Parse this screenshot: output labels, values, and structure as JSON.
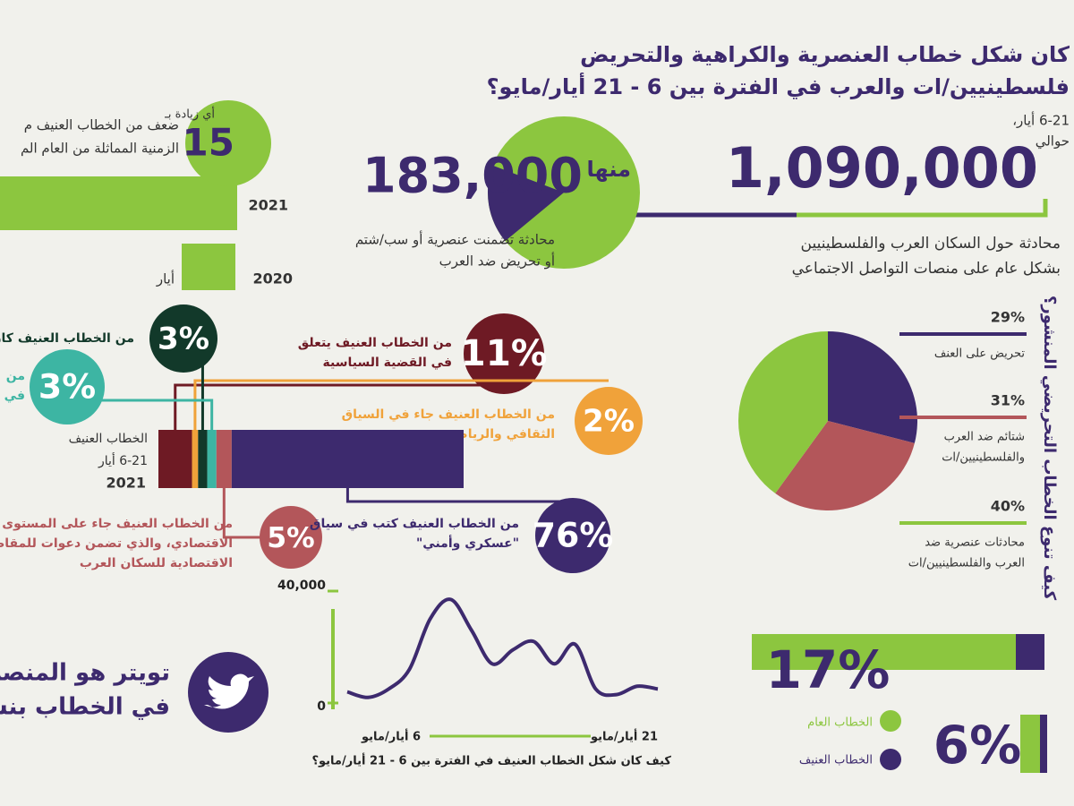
{
  "title": {
    "line1": "كان شكل خطاب العنصرية والكراهية والتحريض",
    "line2": "فلسطينيين/ات والعرب في الفترة بين 6 - 21 أيار/مايو؟"
  },
  "total": {
    "period": "6-21 أيار،",
    "about": "حوالي",
    "value": 1090000,
    "label": "1,090,000",
    "desc1": "محادثة حول السكان العرب والفلسطينيين",
    "desc2": "بشكل عام على منصات التواصل الاجتماعي"
  },
  "violent": {
    "of_which": "منها",
    "value": 183000,
    "label": "183,000",
    "desc1": "محادثة تضمنت عنصرية أو سب/شتم",
    "desc2": "أو تحريض ضد العرب"
  },
  "growth": {
    "prefix": "أي زيادة بـ",
    "value": "15",
    "desc1": "ضعف من الخطاب العنيف م",
    "desc2": "الزمنية المماثلة من العام الم",
    "year_2021": "2021",
    "year_2020": "2020",
    "month": "أيار"
  },
  "breakdown": {
    "label1": "الخطاب العنيف",
    "label2": "6-21 أيار",
    "year": "2021",
    "segments": [
      {
        "value": 11,
        "label": "11%",
        "color": "#6e1a24",
        "desc": [
          "من الخطاب العنيف يتعلق",
          "في القضية السياسية"
        ]
      },
      {
        "value": 2,
        "label": "2%",
        "color": "#f0a23a",
        "desc": [
          "من الخطاب العنيف جاء في السياق",
          "الثقافي والرياضي"
        ]
      },
      {
        "value": 3,
        "label": "3%",
        "color": "#12392a",
        "desc": [
          "من الخطاب العنيف كان ع"
        ]
      },
      {
        "value": 3,
        "label": "3%",
        "color": "#3db5a3",
        "desc": [
          "من",
          "في"
        ]
      },
      {
        "value": 5,
        "label": "5%",
        "color": "#b3565a",
        "desc": [
          "من الخطاب العنيف جاء على المستوى",
          "الاقتصادي، والذي تضمن دعوات للمقاطعة",
          "الاقتصادية للسكان العرب"
        ]
      },
      {
        "value": 76,
        "label": "76%",
        "color": "#3d2a6e",
        "desc": [
          "من الخطاب العنيف كتب في سياق",
          "\"عسكري وأمني\""
        ]
      }
    ]
  },
  "types": {
    "title": "كيف تنوع الخطاب التحريضي المنشور؟",
    "slices": [
      {
        "value": 29,
        "label": "29%",
        "color": "#3d2a6e",
        "desc": [
          "تحريض على العنف"
        ]
      },
      {
        "value": 31,
        "label": "31%",
        "color": "#b3565a",
        "desc": [
          "شتائم ضد العرب",
          "والفلسطينيين/ات"
        ]
      },
      {
        "value": 40,
        "label": "40%",
        "color": "#8cc63f",
        "desc": [
          "محادثات عنصرية ضد",
          "العرب والفلسطينيين/ات"
        ]
      }
    ]
  },
  "timeline": {
    "type": "line",
    "color": "#3d2a6e",
    "values": [
      4000,
      2000,
      5000,
      12000,
      30000,
      37000,
      26000,
      14000,
      19000,
      22000,
      14000,
      21000,
      5000,
      3000,
      6000,
      5000
    ],
    "ylim": [
      0,
      40000
    ],
    "yticks": [
      0,
      {
        "value": 40000,
        "label": "40,000"
      }
    ],
    "start": "6 أيار/مايو",
    "end": "21 أيار/مايو",
    "caption": "كيف كان شكل الخطاب العنيف في الفترة بين 6 - 21 أيار/مايو؟"
  },
  "platform": {
    "text1": "تويتر هو المنصة الأ",
    "text2": "في الخطاب بنسب",
    "general": "17%",
    "violent": "6%",
    "legend_general": "الخطاب العام",
    "legend_violent": "الخطاب العنيف"
  }
}
